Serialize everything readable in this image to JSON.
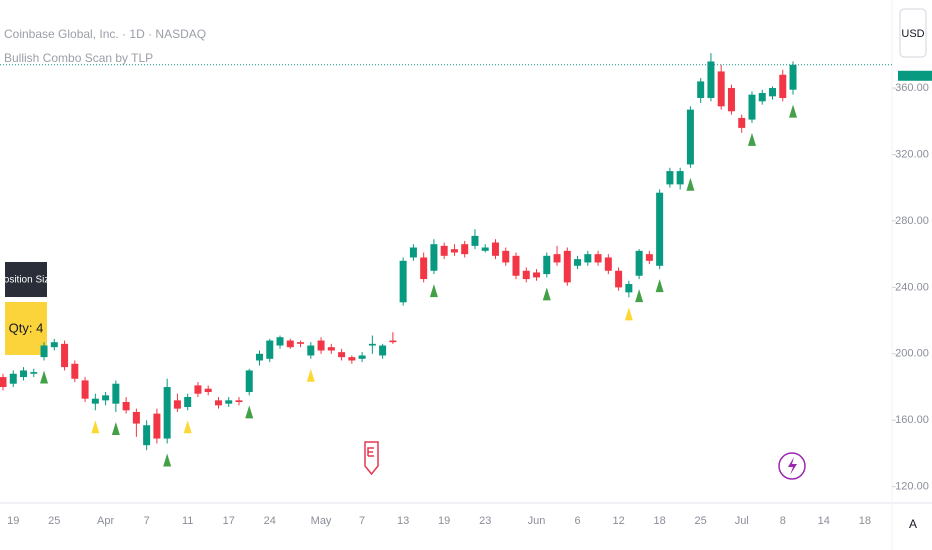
{
  "chart_data": {
    "type": "candlestick",
    "title": "Coinbase Global, Inc. · 1D · NASDAQ",
    "subtitle": "Bullish Combo Scan by TLP",
    "currency": "USD",
    "auto_button": "A",
    "panel": {
      "header": "Position Size",
      "value": "Qty: 4"
    },
    "up_color": "#089981",
    "down_color": "#f23645",
    "categories": [
      null,
      "19",
      null,
      null,
      null,
      "25",
      null,
      null,
      null,
      null,
      "Apr",
      null,
      null,
      null,
      "7",
      null,
      null,
      null,
      "11",
      null,
      null,
      null,
      "17",
      null,
      null,
      null,
      "24",
      null,
      null,
      null,
      null,
      "May",
      null,
      null,
      null,
      "7",
      null,
      null,
      null,
      "13",
      null,
      null,
      null,
      "19",
      null,
      null,
      null,
      "23",
      null,
      null,
      null,
      null,
      "Jun",
      null,
      null,
      null,
      "6",
      null,
      null,
      null,
      "12",
      null,
      null,
      null,
      "18",
      null,
      null,
      null,
      "25",
      null,
      null,
      null,
      "Jul",
      null,
      null,
      null,
      "8",
      null,
      null,
      null,
      "14",
      null,
      null,
      null,
      "18"
    ],
    "open": [
      186,
      182,
      186,
      188,
      198,
      204,
      206,
      194,
      184,
      170,
      172,
      170,
      171,
      165,
      145,
      164,
      149,
      172,
      168,
      181,
      179,
      172,
      170,
      172,
      177,
      196,
      197,
      205,
      208,
      207,
      199,
      208,
      204,
      201,
      198,
      197,
      205,
      199,
      208,
      231,
      258,
      258,
      250,
      265,
      263,
      266,
      265,
      262,
      267,
      262,
      259,
      250,
      249,
      248,
      260,
      262,
      253,
      255,
      260,
      258,
      250,
      237,
      247,
      260,
      253,
      302,
      302,
      314,
      354,
      354,
      370,
      360,
      342,
      341,
      352,
      355,
      368,
      359,
      null,
      null,
      null,
      null,
      null,
      null,
      null
    ],
    "high": [
      188,
      190,
      192,
      191,
      207,
      209,
      208,
      196,
      186,
      176,
      177,
      184,
      174,
      167,
      160,
      167,
      185,
      176,
      176,
      183,
      181,
      174,
      174,
      174,
      191,
      202,
      209,
      211,
      209,
      208,
      207,
      210,
      206,
      203,
      199,
      201,
      211,
      206,
      213,
      258,
      266,
      261,
      269,
      267,
      266,
      268,
      275,
      266,
      269,
      264,
      261,
      252,
      251,
      261,
      265,
      264,
      259,
      262,
      262,
      260,
      252,
      244,
      263,
      262,
      299,
      312,
      312,
      349,
      366,
      381,
      374,
      362,
      344,
      358,
      359,
      361,
      371,
      376,
      null,
      null,
      null,
      null,
      null,
      null,
      null
    ],
    "low": [
      178,
      180,
      184,
      186,
      196,
      202,
      190,
      183,
      171,
      166,
      169,
      165,
      164,
      150,
      142,
      146,
      146,
      165,
      166,
      174,
      175,
      167,
      168,
      169,
      175,
      193,
      195,
      203,
      203,
      204,
      197,
      200,
      200,
      196,
      194,
      195,
      200,
      197,
      206,
      229,
      256,
      243,
      248,
      257,
      259,
      258,
      263,
      261,
      257,
      253,
      245,
      243,
      244,
      246,
      253,
      241,
      251,
      253,
      253,
      248,
      238,
      234,
      245,
      254,
      251,
      300,
      299,
      312,
      351,
      352,
      347,
      344,
      333,
      339,
      350,
      353,
      352,
      356,
      null,
      null,
      null,
      null,
      null,
      null,
      null
    ],
    "close": [
      180,
      188,
      190,
      189,
      205,
      207,
      192,
      185,
      173,
      173,
      175,
      182,
      166,
      158,
      157,
      149,
      180,
      167,
      174,
      176,
      177,
      169,
      172,
      171,
      190,
      200,
      208,
      210,
      204,
      206,
      205,
      202,
      202,
      198,
      196,
      199,
      206,
      205,
      207,
      256,
      264,
      245,
      266,
      259,
      261,
      260,
      271,
      264,
      259,
      255,
      247,
      245,
      246,
      259,
      255,
      243,
      257,
      260,
      255,
      250,
      240,
      242,
      262,
      256,
      297,
      310,
      310,
      347,
      364,
      376,
      349,
      346,
      336,
      356,
      357,
      360,
      354,
      374,
      null,
      null,
      null,
      null,
      null,
      null,
      null
    ],
    "signals": [
      {
        "color": "#43a047",
        "x": [
          4,
          11,
          16,
          24,
          42,
          53,
          62,
          64,
          67,
          73,
          77
        ]
      },
      {
        "color": "#fdd835",
        "x": [
          9,
          18,
          30,
          61
        ]
      }
    ],
    "ylim": [
      112,
      413
    ],
    "yticks": [
      {
        "value": 120,
        "label": "120.00"
      },
      {
        "value": 160,
        "label": "160.00"
      },
      {
        "value": 200,
        "label": "200.00"
      },
      {
        "value": 240,
        "label": "240.00"
      },
      {
        "value": 280,
        "label": "280.00"
      },
      {
        "value": 320,
        "label": "320.00"
      },
      {
        "value": 360,
        "label": "360.00"
      }
    ],
    "grid": false
  }
}
